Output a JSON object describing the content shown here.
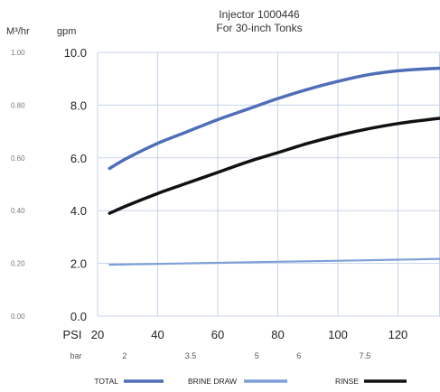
{
  "chart_data": {
    "type": "line",
    "title": [
      "Injector 1000446",
      "For 30-inch Tonks"
    ],
    "y_units": {
      "metric_label": "M³/hr",
      "imperial_label": "gpm"
    },
    "x_units": {
      "primary_label": "PSI",
      "secondary_label": "bar"
    },
    "x_ticks": [
      20,
      40,
      60,
      80,
      100,
      120
    ],
    "x_labels": [
      "20",
      "40",
      "60",
      "80",
      "100",
      "120"
    ],
    "xlim": [
      20,
      134
    ],
    "y_ticks": [
      0,
      2,
      4,
      6,
      8,
      10
    ],
    "y_labels": [
      "0.0",
      "2.0",
      "4.0",
      "6.0",
      "8.0",
      "10.0"
    ],
    "ylim": [
      0,
      10
    ],
    "metric_y_labels": [
      "0.00",
      "0.20",
      "0.40",
      "0.60",
      "0.80",
      "1.00"
    ],
    "bar_ticks": [
      {
        "psi": 29,
        "label": "2"
      },
      {
        "psi": 51,
        "label": "3.5"
      },
      {
        "psi": 73,
        "label": "5"
      },
      {
        "psi": 87,
        "label": "6"
      },
      {
        "psi": 109,
        "label": "7.5"
      }
    ],
    "grid": true,
    "legend_position": "bottom",
    "series": [
      {
        "name": "TOTAL",
        "color": "#4f6eb8",
        "x": [
          24,
          30,
          40,
          50,
          60,
          70,
          80,
          90,
          100,
          110,
          120,
          130,
          134
        ],
        "y": [
          5.6,
          6.0,
          6.55,
          7.0,
          7.45,
          7.85,
          8.25,
          8.6,
          8.9,
          9.15,
          9.3,
          9.38,
          9.4
        ]
      },
      {
        "name": "BRINE DRAW",
        "color": "#7fa0d8",
        "x": [
          24,
          40,
          60,
          80,
          100,
          120,
          134
        ],
        "y": [
          1.95,
          1.98,
          2.02,
          2.06,
          2.1,
          2.14,
          2.17
        ]
      },
      {
        "name": "RINSE",
        "color": "#111111",
        "x": [
          24,
          30,
          40,
          50,
          60,
          70,
          80,
          90,
          100,
          110,
          120,
          130,
          134
        ],
        "y": [
          3.9,
          4.2,
          4.65,
          5.05,
          5.45,
          5.85,
          6.2,
          6.55,
          6.85,
          7.1,
          7.3,
          7.45,
          7.5
        ]
      }
    ]
  }
}
